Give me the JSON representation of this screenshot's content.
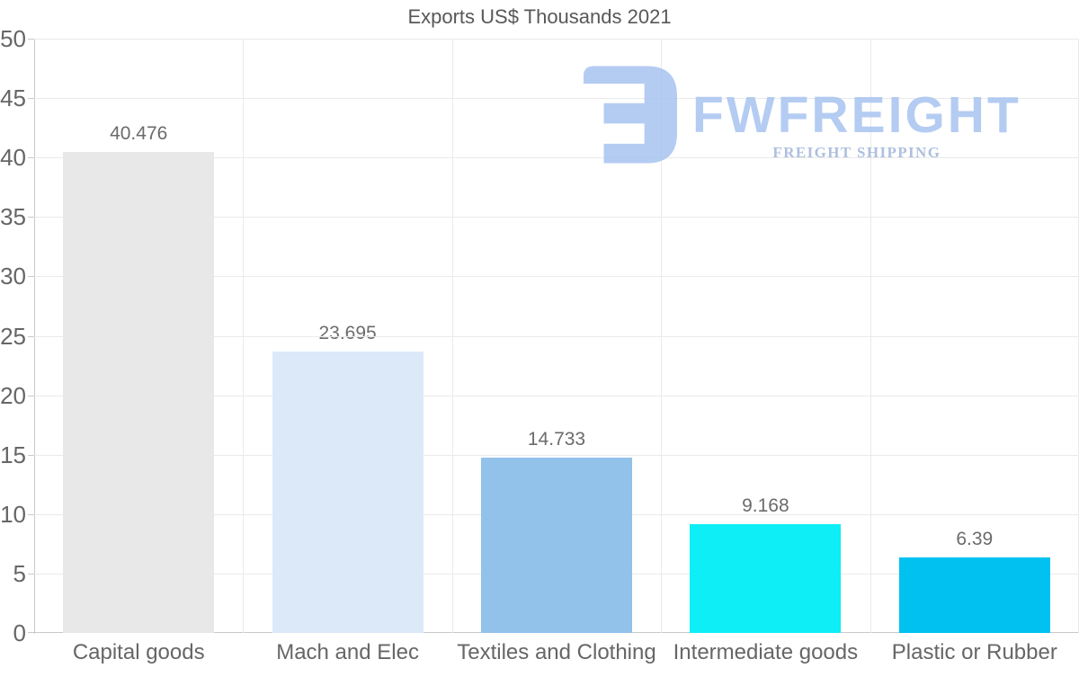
{
  "title": "Exports US$ Thousands 2021",
  "watermark": {
    "brand": "FWFREIGHT",
    "tagline": "FREIGHT SHIPPING",
    "logo_color": "#a6c3f0",
    "tagline_color": "#9fb3da"
  },
  "chart_data": {
    "type": "bar",
    "title": "Exports US$ Thousands 2021",
    "categories": [
      "Capital goods",
      "Mach and Elec",
      "Textiles and Clothing",
      "Intermediate goods",
      "Plastic or Rubber"
    ],
    "values": [
      40.476,
      23.695,
      14.733,
      9.168,
      6.39
    ],
    "value_labels": [
      "40.476",
      "23.695",
      "14.733",
      "9.168",
      "6.39"
    ],
    "bar_colors": [
      "#e8e8e8",
      "#dbe9f8",
      "#92c1e9",
      "#0eeef6",
      "#00c1ef"
    ],
    "xlabel": "",
    "ylabel": "",
    "ylim": [
      0,
      50
    ],
    "ytick_step": 5,
    "ytick_labels": [
      "0",
      "5",
      "10",
      "15",
      "20",
      "25",
      "30",
      "35",
      "40",
      "45",
      "50"
    ],
    "grid": true,
    "legend": "none",
    "colors": {
      "gridline": "#eaeaea",
      "axis": "#c9c9c9",
      "tick_label": "#666666",
      "value_label": "#6b6b6b",
      "category_label": "#666666",
      "title": "#585858"
    }
  }
}
